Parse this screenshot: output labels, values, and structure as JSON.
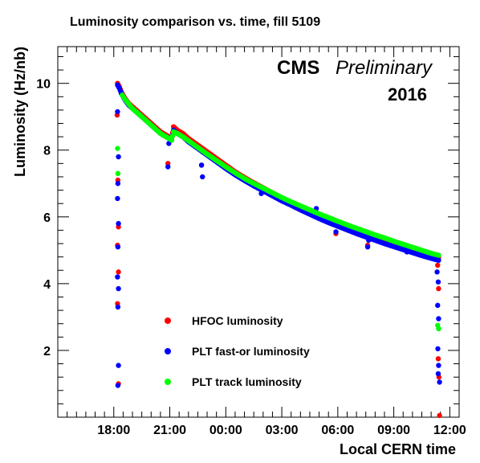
{
  "chart_data": {
    "type": "scatter",
    "title": "Luminosity comparison vs. time, fill 5109",
    "xlabel": "Local CERN time",
    "ylabel": "Luminosity (Hz/nb)",
    "xlim": [
      15.0,
      36.5
    ],
    "ylim": [
      0,
      11.1
    ],
    "x_unit": "hours since 00:00 of fill start day",
    "x_ticks": [
      {
        "value": 18,
        "label": "18:00"
      },
      {
        "value": 21,
        "label": "21:00"
      },
      {
        "value": 24,
        "label": "00:00"
      },
      {
        "value": 27,
        "label": "03:00"
      },
      {
        "value": 30,
        "label": "06:00"
      },
      {
        "value": 33,
        "label": "09:00"
      },
      {
        "value": 36,
        "label": "12:00"
      }
    ],
    "y_ticks": [
      {
        "value": 2,
        "label": "2"
      },
      {
        "value": 4,
        "label": "4"
      },
      {
        "value": 6,
        "label": "6"
      },
      {
        "value": 8,
        "label": "8"
      },
      {
        "value": 10,
        "label": "10"
      }
    ],
    "annotations": {
      "experiment": "CMS",
      "status": "Preliminary",
      "year": "2016"
    },
    "legend_position": "bottom-center",
    "series": [
      {
        "name": "HFOC luminosity",
        "color": "#ff0000",
        "points": [
          [
            18.2,
            10.0
          ],
          [
            18.3,
            9.9
          ],
          [
            18.4,
            9.75
          ],
          [
            18.6,
            9.55
          ],
          [
            18.8,
            9.4
          ],
          [
            19.0,
            9.3
          ],
          [
            19.3,
            9.15
          ],
          [
            19.6,
            9.0
          ],
          [
            19.9,
            8.85
          ],
          [
            20.2,
            8.7
          ],
          [
            20.5,
            8.55
          ],
          [
            20.8,
            8.45
          ],
          [
            21.1,
            8.35
          ],
          [
            21.2,
            8.7
          ],
          [
            21.4,
            8.6
          ],
          [
            21.7,
            8.5
          ],
          [
            22.0,
            8.35
          ],
          [
            22.5,
            8.15
          ],
          [
            23.0,
            7.95
          ],
          [
            23.5,
            7.75
          ],
          [
            24.0,
            7.55
          ],
          [
            24.5,
            7.35
          ],
          [
            25.0,
            7.18
          ],
          [
            25.5,
            7.02
          ],
          [
            26.0,
            6.87
          ],
          [
            26.5,
            6.72
          ],
          [
            27.0,
            6.57
          ],
          [
            27.5,
            6.44
          ],
          [
            28.0,
            6.3
          ],
          [
            28.5,
            6.17
          ],
          [
            29.0,
            6.04
          ],
          [
            29.5,
            5.92
          ],
          [
            30.0,
            5.81
          ],
          [
            30.5,
            5.7
          ],
          [
            31.0,
            5.59
          ],
          [
            31.5,
            5.49
          ],
          [
            32.0,
            5.39
          ],
          [
            32.5,
            5.29
          ],
          [
            33.0,
            5.2
          ],
          [
            33.5,
            5.11
          ],
          [
            34.0,
            5.02
          ],
          [
            34.5,
            4.93
          ],
          [
            35.0,
            4.85
          ],
          [
            35.4,
            4.78
          ],
          [
            18.18,
            9.05
          ],
          [
            18.22,
            7.1
          ],
          [
            18.25,
            5.7
          ],
          [
            18.2,
            5.15
          ],
          [
            18.25,
            4.35
          ],
          [
            18.2,
            3.4
          ],
          [
            18.25,
            1.0
          ],
          [
            20.9,
            7.6
          ],
          [
            22.7,
            7.55
          ],
          [
            25.9,
            6.9
          ],
          [
            28.8,
            6.1
          ],
          [
            29.9,
            5.5
          ],
          [
            31.6,
            5.15
          ],
          [
            33.7,
            5.0
          ],
          [
            35.35,
            4.55
          ],
          [
            35.4,
            3.85
          ],
          [
            35.38,
            1.75
          ],
          [
            35.42,
            1.2
          ],
          [
            35.45,
            0.05
          ]
        ]
      },
      {
        "name": "PLT fast-or luminosity",
        "color": "#0000ff",
        "points": [
          [
            18.2,
            9.95
          ],
          [
            18.3,
            9.85
          ],
          [
            18.4,
            9.7
          ],
          [
            18.6,
            9.5
          ],
          [
            18.8,
            9.35
          ],
          [
            19.0,
            9.25
          ],
          [
            19.3,
            9.1
          ],
          [
            19.6,
            8.95
          ],
          [
            19.9,
            8.8
          ],
          [
            20.2,
            8.65
          ],
          [
            20.5,
            8.5
          ],
          [
            20.8,
            8.4
          ],
          [
            21.1,
            8.3
          ],
          [
            21.2,
            8.6
          ],
          [
            21.4,
            8.5
          ],
          [
            21.7,
            8.4
          ],
          [
            22.0,
            8.25
          ],
          [
            22.5,
            8.05
          ],
          [
            23.0,
            7.85
          ],
          [
            23.5,
            7.65
          ],
          [
            24.0,
            7.45
          ],
          [
            24.5,
            7.26
          ],
          [
            25.0,
            7.09
          ],
          [
            25.5,
            6.93
          ],
          [
            26.0,
            6.78
          ],
          [
            26.5,
            6.63
          ],
          [
            27.0,
            6.48
          ],
          [
            27.5,
            6.35
          ],
          [
            28.0,
            6.21
          ],
          [
            28.5,
            6.08
          ],
          [
            29.0,
            5.95
          ],
          [
            29.5,
            5.83
          ],
          [
            30.0,
            5.72
          ],
          [
            30.5,
            5.61
          ],
          [
            31.0,
            5.5
          ],
          [
            31.5,
            5.4
          ],
          [
            32.0,
            5.3
          ],
          [
            32.5,
            5.2
          ],
          [
            33.0,
            5.11
          ],
          [
            33.5,
            5.02
          ],
          [
            34.0,
            4.93
          ],
          [
            34.5,
            4.84
          ],
          [
            35.0,
            4.76
          ],
          [
            35.4,
            4.7
          ],
          [
            18.2,
            9.15
          ],
          [
            18.25,
            7.8
          ],
          [
            18.22,
            7.0
          ],
          [
            18.2,
            6.55
          ],
          [
            18.25,
            5.8
          ],
          [
            18.22,
            5.1
          ],
          [
            18.2,
            4.2
          ],
          [
            18.25,
            3.85
          ],
          [
            18.22,
            3.3
          ],
          [
            18.25,
            1.55
          ],
          [
            18.22,
            0.95
          ],
          [
            20.9,
            7.5
          ],
          [
            20.95,
            8.2
          ],
          [
            22.7,
            7.55
          ],
          [
            22.75,
            7.2
          ],
          [
            25.9,
            6.7
          ],
          [
            25.95,
            6.85
          ],
          [
            28.8,
            6.05
          ],
          [
            28.85,
            6.25
          ],
          [
            29.9,
            5.55
          ],
          [
            31.6,
            5.1
          ],
          [
            31.65,
            5.3
          ],
          [
            33.7,
            4.95
          ],
          [
            33.75,
            5.1
          ],
          [
            35.32,
            4.35
          ],
          [
            35.38,
            4.05
          ],
          [
            35.35,
            3.35
          ],
          [
            35.4,
            2.95
          ],
          [
            35.36,
            2.05
          ],
          [
            35.4,
            1.55
          ],
          [
            35.38,
            1.3
          ],
          [
            35.45,
            1.05
          ]
        ]
      },
      {
        "name": "PLT track luminosity",
        "color": "#00ff00",
        "points": [
          [
            18.45,
            9.65
          ],
          [
            18.6,
            9.52
          ],
          [
            18.8,
            9.38
          ],
          [
            19.0,
            9.25
          ],
          [
            19.3,
            9.1
          ],
          [
            19.6,
            8.95
          ],
          [
            19.9,
            8.8
          ],
          [
            20.2,
            8.65
          ],
          [
            20.5,
            8.5
          ],
          [
            20.8,
            8.4
          ],
          [
            21.1,
            8.3
          ],
          [
            21.2,
            8.55
          ],
          [
            21.4,
            8.5
          ],
          [
            21.7,
            8.4
          ],
          [
            22.0,
            8.28
          ],
          [
            22.5,
            8.08
          ],
          [
            23.0,
            7.88
          ],
          [
            23.5,
            7.69
          ],
          [
            24.0,
            7.5
          ],
          [
            24.5,
            7.32
          ],
          [
            25.0,
            7.15
          ],
          [
            25.5,
            7.0
          ],
          [
            26.0,
            6.86
          ],
          [
            26.5,
            6.72
          ],
          [
            27.0,
            6.58
          ],
          [
            27.5,
            6.45
          ],
          [
            28.0,
            6.33
          ],
          [
            28.5,
            6.21
          ],
          [
            29.0,
            6.09
          ],
          [
            29.5,
            5.98
          ],
          [
            30.0,
            5.87
          ],
          [
            30.5,
            5.76
          ],
          [
            31.0,
            5.66
          ],
          [
            31.5,
            5.56
          ],
          [
            32.0,
            5.46
          ],
          [
            32.5,
            5.37
          ],
          [
            33.0,
            5.27
          ],
          [
            33.5,
            5.18
          ],
          [
            34.0,
            5.09
          ],
          [
            34.5,
            5.0
          ],
          [
            35.0,
            4.91
          ],
          [
            35.4,
            4.85
          ],
          [
            18.2,
            8.05
          ],
          [
            18.22,
            7.3
          ],
          [
            35.35,
            2.75
          ],
          [
            35.4,
            2.65
          ]
        ]
      }
    ]
  }
}
